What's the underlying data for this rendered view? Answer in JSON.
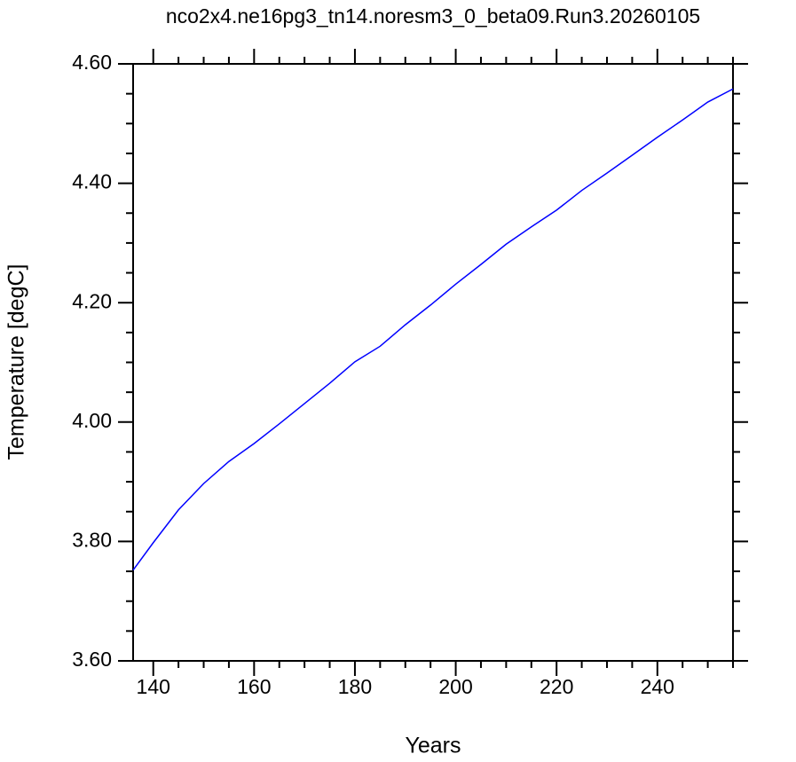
{
  "chart_data": {
    "type": "line",
    "title": "nco2x4.ne16pg3_tn14.noresm3_0_beta09.Run3.20260105",
    "x_label": "Years",
    "y_label": "Temperature [degC]",
    "x": [
      136,
      140,
      145,
      150,
      155,
      160,
      165,
      170,
      175,
      180,
      185,
      190,
      195,
      200,
      205,
      210,
      215,
      220,
      225,
      230,
      235,
      240,
      245,
      250,
      255
    ],
    "series": [
      {
        "color": "#0000ff",
        "values": [
          3.752,
          3.798,
          3.853,
          3.897,
          3.934,
          3.964,
          3.997,
          4.031,
          4.065,
          4.101,
          4.127,
          4.163,
          4.196,
          4.231,
          4.264,
          4.298,
          4.327,
          4.355,
          4.388,
          4.417,
          4.447,
          4.477,
          4.506,
          4.536,
          4.558
        ]
      }
    ],
    "xlim": [
      136,
      255
    ],
    "ylim": [
      3.6,
      4.6
    ],
    "xticks": [
      140,
      160,
      180,
      200,
      220,
      240
    ],
    "yticks": [
      {
        "value": 3.6,
        "label": "3.60"
      },
      {
        "value": 3.8,
        "label": "3.80"
      },
      {
        "value": 4.0,
        "label": "4.00"
      },
      {
        "value": 4.2,
        "label": "4.20"
      },
      {
        "value": 4.4,
        "label": "4.40"
      },
      {
        "value": 4.6,
        "label": "4.60"
      }
    ],
    "xminorticks": [
      145,
      150,
      155,
      165,
      170,
      175,
      185,
      190,
      195,
      205,
      210,
      215,
      225,
      230,
      235,
      245,
      250,
      255
    ],
    "yminorticks": [
      3.65,
      3.7,
      3.75,
      3.85,
      3.9,
      3.95,
      4.05,
      4.1,
      4.15,
      4.25,
      4.3,
      4.35,
      4.45,
      4.5,
      4.55
    ],
    "grid": false
  }
}
